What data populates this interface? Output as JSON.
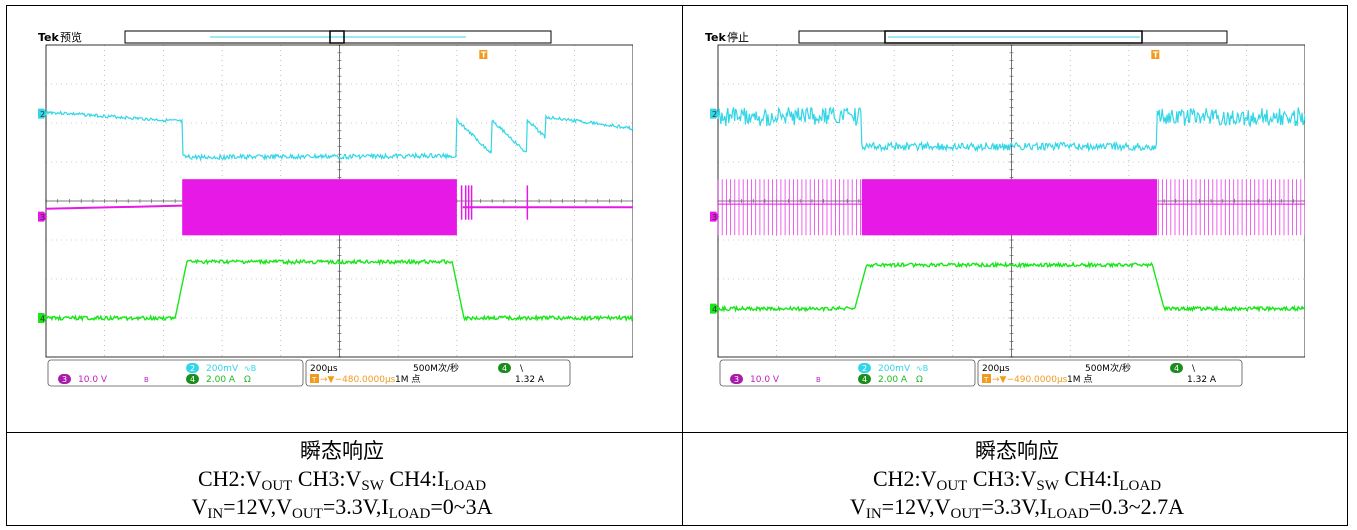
{
  "chart_data": [
    {
      "type": "line",
      "scope_brand": "Tek",
      "status": "预览",
      "trigger_marker": "T",
      "trigger_position_fraction": 0.5,
      "channel_markers": [
        "2",
        "3",
        "4"
      ],
      "readout": {
        "ch2_scale": "200mV",
        "ch2_coupling_icon": "ac-bandwidth-icon",
        "ch3_label": "3",
        "ch3_scale": "10.0 V",
        "ch3_icon": "bw-limit-icon",
        "ch4_label": "4",
        "ch4_scale": "2.00 A",
        "ch4_unit_icon": "ohm-icon",
        "ch2_label": "2",
        "timebase": "200µs",
        "trigger_offset": "→▼−480.0000µs",
        "sample_rate": "500M次/秒",
        "record_length": "1M 点",
        "trig_channel": "4",
        "trig_slope": "\\",
        "trig_level": "1.32 A",
        "ohm": "Ω",
        "bw": "B",
        "ac": "∿"
      },
      "x_divisions": 10,
      "y_divisions": 8,
      "events_fraction": {
        "load_step_up": 0.232,
        "load_step_down": 0.7
      },
      "series": [
        {
          "name": "CH2",
          "color": "#33d6e6",
          "shape": "vout_droop_0_3A"
        },
        {
          "name": "CH3",
          "color": "#e619e6",
          "shape": "vsw_0_3A"
        },
        {
          "name": "CH4",
          "color": "#19e619",
          "shape": "iload_0_3A"
        }
      ],
      "caption": {
        "title": "瞬态响应",
        "line2": {
          "p1": "CH2:V",
          "s1": "OUT",
          "p2": " CH3:V",
          "s2": "SW",
          "p3": " CH4:I",
          "s3": "LOAD"
        },
        "line3": {
          "p1": "V",
          "s1": "IN",
          "p2": "=12V,V",
          "s2": "OUT",
          "p3": "=3.3V,I",
          "s3": "LOAD",
          "p4": "=0~3A"
        }
      }
    },
    {
      "type": "line",
      "scope_brand": "Tek",
      "status": "停止",
      "trigger_marker": "T",
      "trigger_position_fraction": 0.5,
      "channel_markers": [
        "2",
        "3",
        "4"
      ],
      "readout": {
        "ch2_scale": "200mV",
        "ch2_coupling_icon": "ac-bandwidth-icon",
        "ch3_label": "3",
        "ch3_scale": "10.0 V",
        "ch3_icon": "bw-limit-icon",
        "ch4_label": "4",
        "ch4_scale": "2.00 A",
        "ch4_unit_icon": "ohm-icon",
        "ch2_label": "2",
        "timebase": "200µs",
        "trigger_offset": "→▼−490.0000µs",
        "sample_rate": "500M次/秒",
        "record_length": "1M 点",
        "trig_channel": "4",
        "trig_slope": "\\",
        "trig_level": "1.32 A",
        "ohm": "Ω",
        "bw": "B",
        "ac": "∿"
      },
      "x_divisions": 10,
      "y_divisions": 8,
      "events_fraction": {
        "load_step_up": 0.245,
        "load_step_down": 0.748
      },
      "series": [
        {
          "name": "CH2",
          "color": "#33d6e6",
          "shape": "vout_0_3_2_7A"
        },
        {
          "name": "CH3",
          "color": "#e619e6",
          "shape": "vsw_0_3_2_7A"
        },
        {
          "name": "CH4",
          "color": "#19e619",
          "shape": "iload_0_3_2_7A"
        }
      ],
      "caption": {
        "title": "瞬态响应",
        "line2": {
          "p1": "CH2:V",
          "s1": "OUT",
          "p2": " CH3:V",
          "s2": "SW",
          "p3": " CH4:I",
          "s3": "LOAD"
        },
        "line3": {
          "p1": "V",
          "s1": "IN",
          "p2": "=12V,V",
          "s2": "OUT",
          "p3": "=3.3V,I",
          "s3": "LOAD",
          "p4": "=0.3~2.7A"
        }
      }
    }
  ]
}
